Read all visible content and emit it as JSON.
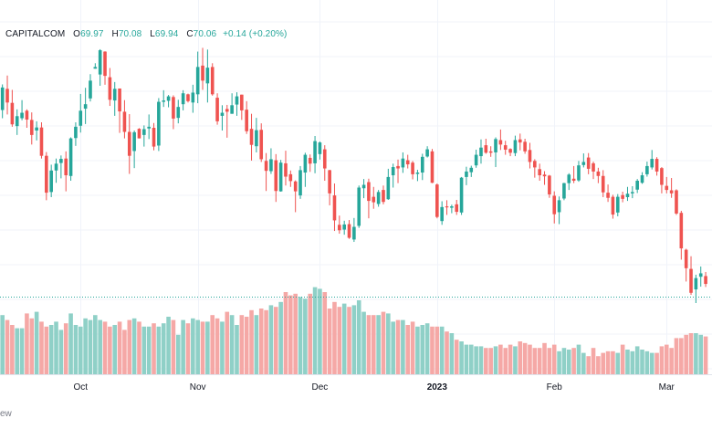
{
  "legend": {
    "symbol": "CAPITALCOM",
    "open_label": "O",
    "open": "69.97",
    "high_label": "H",
    "high": "70.08",
    "low_label": "L",
    "low": "69.94",
    "close_label": "C",
    "close": "70.06",
    "change": "+0.14 (+0.20%)"
  },
  "footer_fragment": "ew",
  "colors": {
    "up": "#26a69a",
    "down": "#ef5350",
    "up_volume": "#8fd0c7",
    "down_volume": "#f5a8a6",
    "grid": "#f0f3fa",
    "dotted_line": "#26a69a"
  },
  "chart_data": {
    "type": "candlestick",
    "title": "",
    "x_tick_labels": [
      "Oct",
      "Nov",
      "Dec",
      "2023",
      "Feb",
      "Mar"
    ],
    "x_tick_bold": [
      false,
      false,
      false,
      true,
      false,
      false
    ],
    "x_tick_candle_index": [
      16,
      40,
      65,
      89,
      113,
      136
    ],
    "grid": true,
    "volume_panel": true,
    "candles": [
      [
        71.1,
        71.85,
        70.86,
        71.76
      ],
      [
        71.72,
        72.11,
        70.97,
        71.32
      ],
      [
        71.31,
        71.69,
        70.61,
        70.68
      ],
      [
        70.63,
        71.12,
        70.37,
        70.92
      ],
      [
        70.86,
        71.39,
        70.8,
        71.02
      ],
      [
        71.08,
        71.12,
        70.58,
        70.82
      ],
      [
        70.81,
        71.03,
        70.09,
        70.37
      ],
      [
        70.5,
        70.77,
        70.21,
        70.59
      ],
      [
        70.59,
        70.74,
        69.68,
        69.76
      ],
      [
        69.76,
        69.87,
        68.46,
        68.68
      ],
      [
        68.7,
        69.5,
        68.55,
        69.33
      ],
      [
        69.33,
        69.68,
        68.97,
        69.53
      ],
      [
        69.55,
        69.77,
        69.1,
        69.67
      ],
      [
        69.68,
        69.89,
        68.72,
        69.19
      ],
      [
        69.17,
        70.3,
        69.03,
        70.27
      ],
      [
        70.28,
        70.74,
        70.05,
        70.61
      ],
      [
        70.64,
        71.57,
        70.44,
        71.08
      ],
      [
        71.14,
        71.75,
        70.69,
        71.27
      ],
      [
        71.44,
        72.15,
        71.35,
        71.96
      ],
      [
        72.31,
        72.47,
        72.31,
        72.36
      ],
      [
        72.14,
        72.88,
        71.81,
        72.85
      ],
      [
        72.81,
        72.82,
        71.84,
        72.1
      ],
      [
        72.06,
        72.33,
        71.22,
        71.4
      ],
      [
        71.38,
        71.92,
        70.93,
        71.72
      ],
      [
        71.73,
        71.73,
        70.43,
        71.06
      ],
      [
        71.05,
        71.39,
        70.27,
        70.46
      ],
      [
        70.46,
        70.98,
        69.23,
        69.76
      ],
      [
        69.9,
        70.5,
        69.4,
        70.45
      ],
      [
        70.55,
        70.57,
        70.27,
        70.27
      ],
      [
        70.37,
        70.65,
        70.03,
        70.54
      ],
      [
        70.56,
        70.97,
        70.25,
        70.61
      ],
      [
        70.58,
        70.72,
        69.92,
        70.03
      ],
      [
        70.06,
        71.45,
        69.9,
        71.34
      ],
      [
        71.34,
        71.68,
        71.19,
        71.38
      ],
      [
        71.37,
        71.54,
        71.18,
        71.5
      ],
      [
        71.48,
        71.53,
        70.54,
        70.85
      ],
      [
        70.87,
        71.4,
        70.71,
        71.19
      ],
      [
        71.27,
        71.68,
        71.09,
        71.59
      ],
      [
        71.56,
        71.58,
        71.32,
        71.36
      ],
      [
        71.32,
        71.84,
        71.02,
        71.61
      ],
      [
        71.56,
        72.81,
        71.3,
        72.36
      ],
      [
        72.4,
        72.92,
        71.69,
        71.96
      ],
      [
        71.88,
        72.87,
        71.32,
        72.34
      ],
      [
        72.36,
        72.47,
        71.52,
        71.56
      ],
      [
        71.46,
        71.59,
        70.67,
        70.77
      ],
      [
        70.93,
        71.24,
        70.5,
        71.02
      ],
      [
        71.13,
        71.25,
        70.29,
        71.05
      ],
      [
        70.99,
        71.59,
        70.99,
        71.24
      ],
      [
        71.26,
        71.62,
        70.93,
        71.5
      ],
      [
        71.55,
        71.55,
        70.81,
        71.09
      ],
      [
        71.11,
        71.36,
        70.4,
        70.48
      ],
      [
        70.55,
        70.99,
        69.62,
        70.08
      ],
      [
        70.04,
        70.87,
        69.86,
        70.51
      ],
      [
        70.52,
        70.71,
        69.58,
        69.66
      ],
      [
        69.61,
        69.84,
        68.73,
        69.32
      ],
      [
        69.31,
        69.98,
        69.23,
        69.66
      ],
      [
        69.63,
        69.81,
        68.41,
        68.73
      ],
      [
        68.72,
        69.64,
        68.71,
        69.56
      ],
      [
        69.54,
        69.91,
        68.89,
        69.15
      ],
      [
        69.22,
        69.33,
        68.85,
        69.02
      ],
      [
        69.01,
        69.04,
        68.11,
        68.72
      ],
      [
        68.6,
        69.46,
        68.5,
        69.34
      ],
      [
        69.27,
        69.85,
        68.85,
        69.79
      ],
      [
        69.7,
        69.8,
        69.29,
        69.53
      ],
      [
        69.54,
        70.34,
        69.25,
        70.19
      ],
      [
        69.81,
        70.18,
        69.65,
        70.15
      ],
      [
        69.95,
        70.07,
        69.03,
        69.39
      ],
      [
        69.34,
        69.35,
        68.31,
        68.66
      ],
      [
        68.6,
        68.95,
        67.56,
        67.87
      ],
      [
        67.74,
        68.01,
        67.48,
        67.58
      ],
      [
        67.6,
        67.86,
        67.45,
        67.75
      ],
      [
        67.76,
        67.88,
        67.33,
        67.36
      ],
      [
        67.31,
        67.94,
        67.24,
        67.68
      ],
      [
        67.71,
        68.89,
        67.65,
        68.83
      ],
      [
        68.81,
        69.08,
        68.52,
        68.91
      ],
      [
        68.99,
        69.09,
        67.93,
        68.44
      ],
      [
        68.56,
        68.85,
        68.21,
        68.4
      ],
      [
        68.35,
        68.76,
        68.27,
        68.7
      ],
      [
        68.76,
        68.89,
        68.34,
        68.41
      ],
      [
        68.49,
        69.38,
        68.47,
        69.14
      ],
      [
        69.19,
        69.53,
        68.83,
        69.43
      ],
      [
        69.46,
        69.65,
        68.96,
        69.39
      ],
      [
        69.42,
        69.86,
        69.26,
        69.68
      ],
      [
        69.63,
        69.79,
        69.39,
        69.51
      ],
      [
        69.56,
        69.61,
        69.07,
        69.22
      ],
      [
        69.23,
        69.35,
        69.02,
        69.27
      ],
      [
        69.27,
        69.82,
        69.05,
        69.73
      ],
      [
        69.74,
        70.04,
        69.71,
        69.95
      ],
      [
        69.89,
        69.96,
        68.96,
        68.97
      ],
      [
        68.92,
        68.95,
        67.93,
        67.97
      ],
      [
        67.85,
        68.43,
        67.74,
        68.26
      ],
      [
        68.28,
        68.46,
        68.03,
        68.25
      ],
      [
        68.24,
        68.33,
        68.08,
        68.28
      ],
      [
        68.34,
        68.47,
        68.03,
        68.12
      ],
      [
        68.1,
        69.14,
        68.03,
        69.12
      ],
      [
        69.14,
        69.44,
        68.9,
        69.3
      ],
      [
        69.28,
        69.47,
        69.14,
        69.41
      ],
      [
        69.48,
        69.94,
        69.41,
        69.79
      ],
      [
        69.75,
        70.24,
        69.53,
        70.0
      ],
      [
        70.07,
        70.26,
        69.82,
        69.85
      ],
      [
        69.89,
        70.04,
        69.73,
        69.85
      ],
      [
        69.86,
        70.3,
        69.43,
        70.25
      ],
      [
        70.22,
        70.53,
        69.93,
        70.09
      ],
      [
        70.07,
        70.2,
        69.79,
        69.94
      ],
      [
        69.96,
        69.98,
        69.75,
        69.85
      ],
      [
        69.84,
        70.35,
        69.75,
        70.22
      ],
      [
        70.24,
        70.41,
        69.92,
        70.15
      ],
      [
        70.17,
        70.26,
        69.82,
        69.89
      ],
      [
        69.93,
        70.14,
        69.39,
        69.58
      ],
      [
        69.61,
        69.66,
        69.12,
        69.42
      ],
      [
        69.37,
        69.53,
        69.03,
        69.19
      ],
      [
        69.21,
        69.31,
        68.91,
        69.16
      ],
      [
        69.18,
        69.2,
        68.53,
        68.63
      ],
      [
        68.59,
        68.72,
        67.78,
        68.05
      ],
      [
        68.11,
        68.57,
        67.76,
        68.46
      ],
      [
        68.51,
        68.97,
        68.46,
        68.96
      ],
      [
        68.96,
        69.25,
        68.76,
        69.21
      ],
      [
        69.09,
        69.46,
        68.96,
        69.03
      ],
      [
        69.04,
        69.61,
        69.0,
        69.48
      ],
      [
        69.49,
        69.83,
        69.42,
        69.58
      ],
      [
        69.71,
        69.84,
        69.22,
        69.38
      ],
      [
        69.54,
        69.59,
        69.08,
        69.3
      ],
      [
        69.3,
        69.41,
        68.96,
        69.17
      ],
      [
        69.17,
        69.34,
        68.55,
        68.69
      ],
      [
        68.68,
        68.92,
        68.41,
        68.53
      ],
      [
        68.56,
        68.62,
        67.92,
        68.04
      ],
      [
        68.1,
        68.64,
        67.99,
        68.56
      ],
      [
        68.61,
        68.71,
        68.4,
        68.5
      ],
      [
        68.55,
        68.85,
        68.44,
        68.65
      ],
      [
        68.66,
        68.87,
        68.52,
        68.7
      ],
      [
        68.77,
        69.08,
        68.67,
        69.03
      ],
      [
        68.97,
        69.28,
        68.94,
        69.19
      ],
      [
        69.22,
        69.59,
        69.15,
        69.46
      ],
      [
        69.42,
        69.93,
        69.36,
        69.67
      ],
      [
        69.67,
        69.72,
        69.18,
        69.3
      ],
      [
        69.4,
        69.43,
        68.66,
        68.91
      ],
      [
        68.88,
        69.14,
        68.66,
        68.76
      ],
      [
        68.75,
        69.11,
        68.53,
        68.66
      ],
      [
        68.75,
        68.78,
        68.03,
        68.07
      ],
      [
        68.09,
        68.15,
        66.72,
        67.05
      ],
      [
        67.01,
        67.04,
        66.08,
        66.47
      ],
      [
        66.45,
        66.82,
        65.69,
        65.75
      ],
      [
        65.85,
        66.28,
        65.45,
        66.18
      ],
      [
        66.22,
        66.52,
        65.93,
        66.32
      ],
      [
        66.24,
        66.36,
        65.92,
        66.01
      ]
    ],
    "volume": [
      36,
      33,
      30,
      28,
      28,
      37,
      34,
      38,
      32,
      29,
      30,
      32,
      27,
      31,
      37,
      30,
      29,
      34,
      33,
      36,
      33,
      32,
      29,
      30,
      32,
      27,
      33,
      34,
      32,
      29,
      29,
      31,
      29,
      31,
      35,
      33,
      24,
      33,
      31,
      34,
      33,
      32,
      32,
      36,
      34,
      32,
      38,
      36,
      30,
      36,
      35,
      39,
      36,
      40,
      39,
      42,
      41,
      44,
      50,
      48,
      49,
      47,
      46,
      49,
      53,
      52,
      50,
      40,
      44,
      41,
      43,
      41,
      42,
      45,
      38,
      36,
      36,
      36,
      38,
      37,
      32,
      33,
      33,
      30,
      32,
      29,
      30,
      31,
      29,
      29,
      29,
      26,
      25,
      21,
      20,
      18,
      18,
      17,
      17,
      16,
      16,
      17,
      18,
      16,
      18,
      17,
      20,
      19,
      18,
      16,
      16,
      19,
      16,
      18,
      14,
      16,
      15,
      16,
      18,
      13,
      11,
      16,
      11,
      13,
      14,
      14,
      13,
      18,
      15,
      14,
      17,
      15,
      14,
      13,
      13,
      17,
      18,
      16,
      22,
      22,
      24,
      25,
      25,
      24,
      23
    ]
  }
}
